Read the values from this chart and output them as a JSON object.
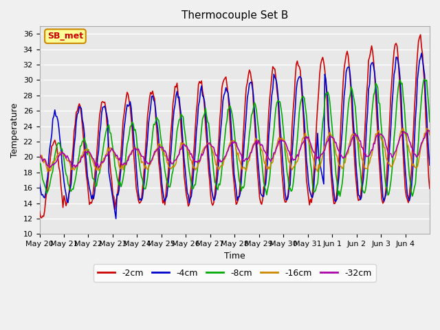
{
  "title": "Thermocouple Set B",
  "xlabel": "Time",
  "ylabel": "Temperature",
  "annotation": "SB_met",
  "ylim": [
    10,
    37
  ],
  "yticks": [
    10,
    12,
    14,
    16,
    18,
    20,
    22,
    24,
    26,
    28,
    30,
    32,
    34,
    36
  ],
  "x_labels": [
    "May 20",
    "May 21",
    "May 22",
    "May 23",
    "May 24",
    "May 25",
    "May 26",
    "May 27",
    "May 28",
    "May 29",
    "May 30",
    "May 31",
    "Jun 1",
    "Jun 2",
    "Jun 3",
    "Jun 4"
  ],
  "colors": {
    "-2cm": "#cc0000",
    "-4cm": "#0000cc",
    "-8cm": "#00aa00",
    "-16cm": "#cc8800",
    "-32cm": "#aa00aa"
  },
  "legend_entries": [
    "-2cm",
    "-4cm",
    "-8cm",
    "-16cm",
    "-32cm"
  ],
  "background_color": "#e8e8e8",
  "grid_color": "#ffffff",
  "annotation_bg": "#ffff99",
  "annotation_border": "#cc8800",
  "annotation_text_color": "#cc0000"
}
